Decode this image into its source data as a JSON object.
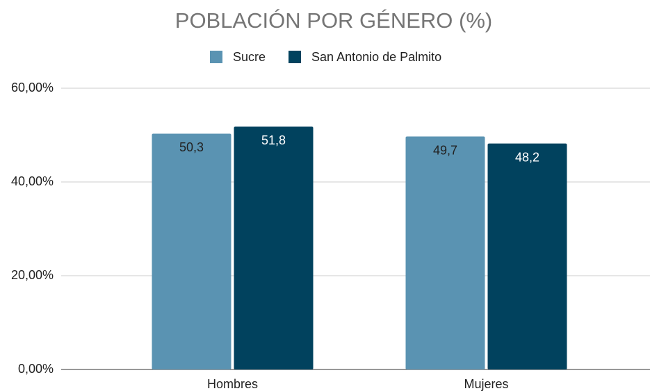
{
  "chart_data": {
    "type": "bar",
    "title": "POBLACIÓN POR GÉNERO (%)",
    "categories": [
      "Hombres",
      "Mujeres"
    ],
    "series": [
      {
        "name": "Sucre",
        "color": "#5a93b2",
        "values": [
          50.3,
          49.7
        ],
        "value_labels": [
          "50,3",
          "49,7"
        ]
      },
      {
        "name": "San Antonio de Palmito",
        "color": "#01425e",
        "values": [
          51.8,
          48.2
        ],
        "value_labels": [
          "51,8",
          "48,2"
        ]
      }
    ],
    "ylim": [
      0,
      60
    ],
    "yticks": [
      {
        "value": 0,
        "label": "0,00%"
      },
      {
        "value": 20,
        "label": "20,00%"
      },
      {
        "value": 40,
        "label": "40,00%"
      },
      {
        "value": 60,
        "label": "60,00%"
      }
    ],
    "grid": true,
    "legend": "top"
  }
}
